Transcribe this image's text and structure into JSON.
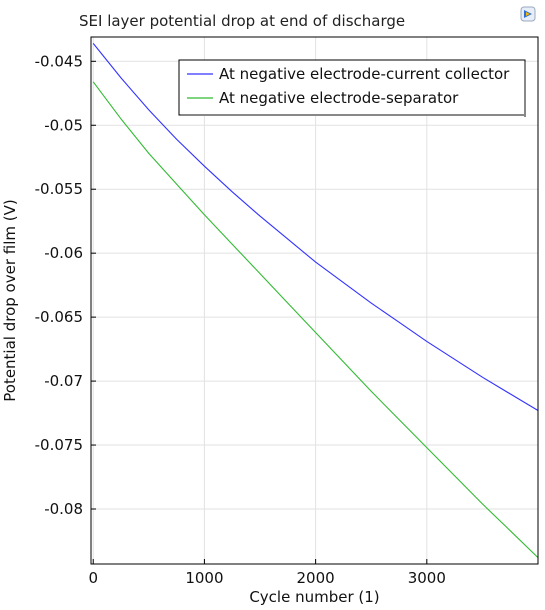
{
  "chart_data": {
    "type": "line",
    "title": "SEI layer potential drop at end of discharge",
    "xlabel": "Cycle number (1)",
    "ylabel": "Potential drop over film (V)",
    "xlim": [
      -20,
      4000
    ],
    "ylim": [
      -0.0843,
      -0.0431
    ],
    "xticks": [
      0,
      1000,
      2000,
      3000
    ],
    "xtick_labels": [
      "0",
      "1000",
      "2000",
      "3000"
    ],
    "yticks": [
      -0.045,
      -0.05,
      -0.055,
      -0.06,
      -0.065,
      -0.07,
      -0.075,
      -0.08
    ],
    "ytick_labels": [
      "-0.045",
      "-0.05",
      "-0.055",
      "-0.06",
      "-0.065",
      "-0.07",
      "-0.075",
      "-0.08"
    ],
    "grid": true,
    "legend_position": "top-right",
    "series": [
      {
        "name": "At negative electrode-current collector",
        "color": "#3333ff",
        "x": [
          0,
          250,
          500,
          750,
          1000,
          1250,
          1500,
          1750,
          2000,
          2250,
          2500,
          2750,
          3000,
          3250,
          3500,
          3750,
          4000
        ],
        "y": [
          -0.0436,
          -0.0463,
          -0.0488,
          -0.0511,
          -0.0532,
          -0.0552,
          -0.0571,
          -0.0589,
          -0.0607,
          -0.0623,
          -0.0639,
          -0.0654,
          -0.0669,
          -0.0683,
          -0.0697,
          -0.071,
          -0.0723
        ]
      },
      {
        "name": "At negative electrode-separator",
        "color": "#33bb33",
        "x": [
          0,
          250,
          500,
          750,
          1000,
          1250,
          1500,
          1750,
          2000,
          2250,
          2500,
          2750,
          3000,
          3250,
          3500,
          3750,
          4000
        ],
        "y": [
          -0.0466,
          -0.0495,
          -0.0522,
          -0.0546,
          -0.057,
          -0.0593,
          -0.0616,
          -0.0639,
          -0.0662,
          -0.0685,
          -0.0708,
          -0.073,
          -0.0752,
          -0.0774,
          -0.0796,
          -0.0817,
          -0.0838
        ]
      }
    ]
  },
  "colors": {
    "grid": "#e2e2e2",
    "axis": "#000000",
    "legend_border": "#000000"
  },
  "icons": {
    "logo": "comsol-logo-icon"
  }
}
